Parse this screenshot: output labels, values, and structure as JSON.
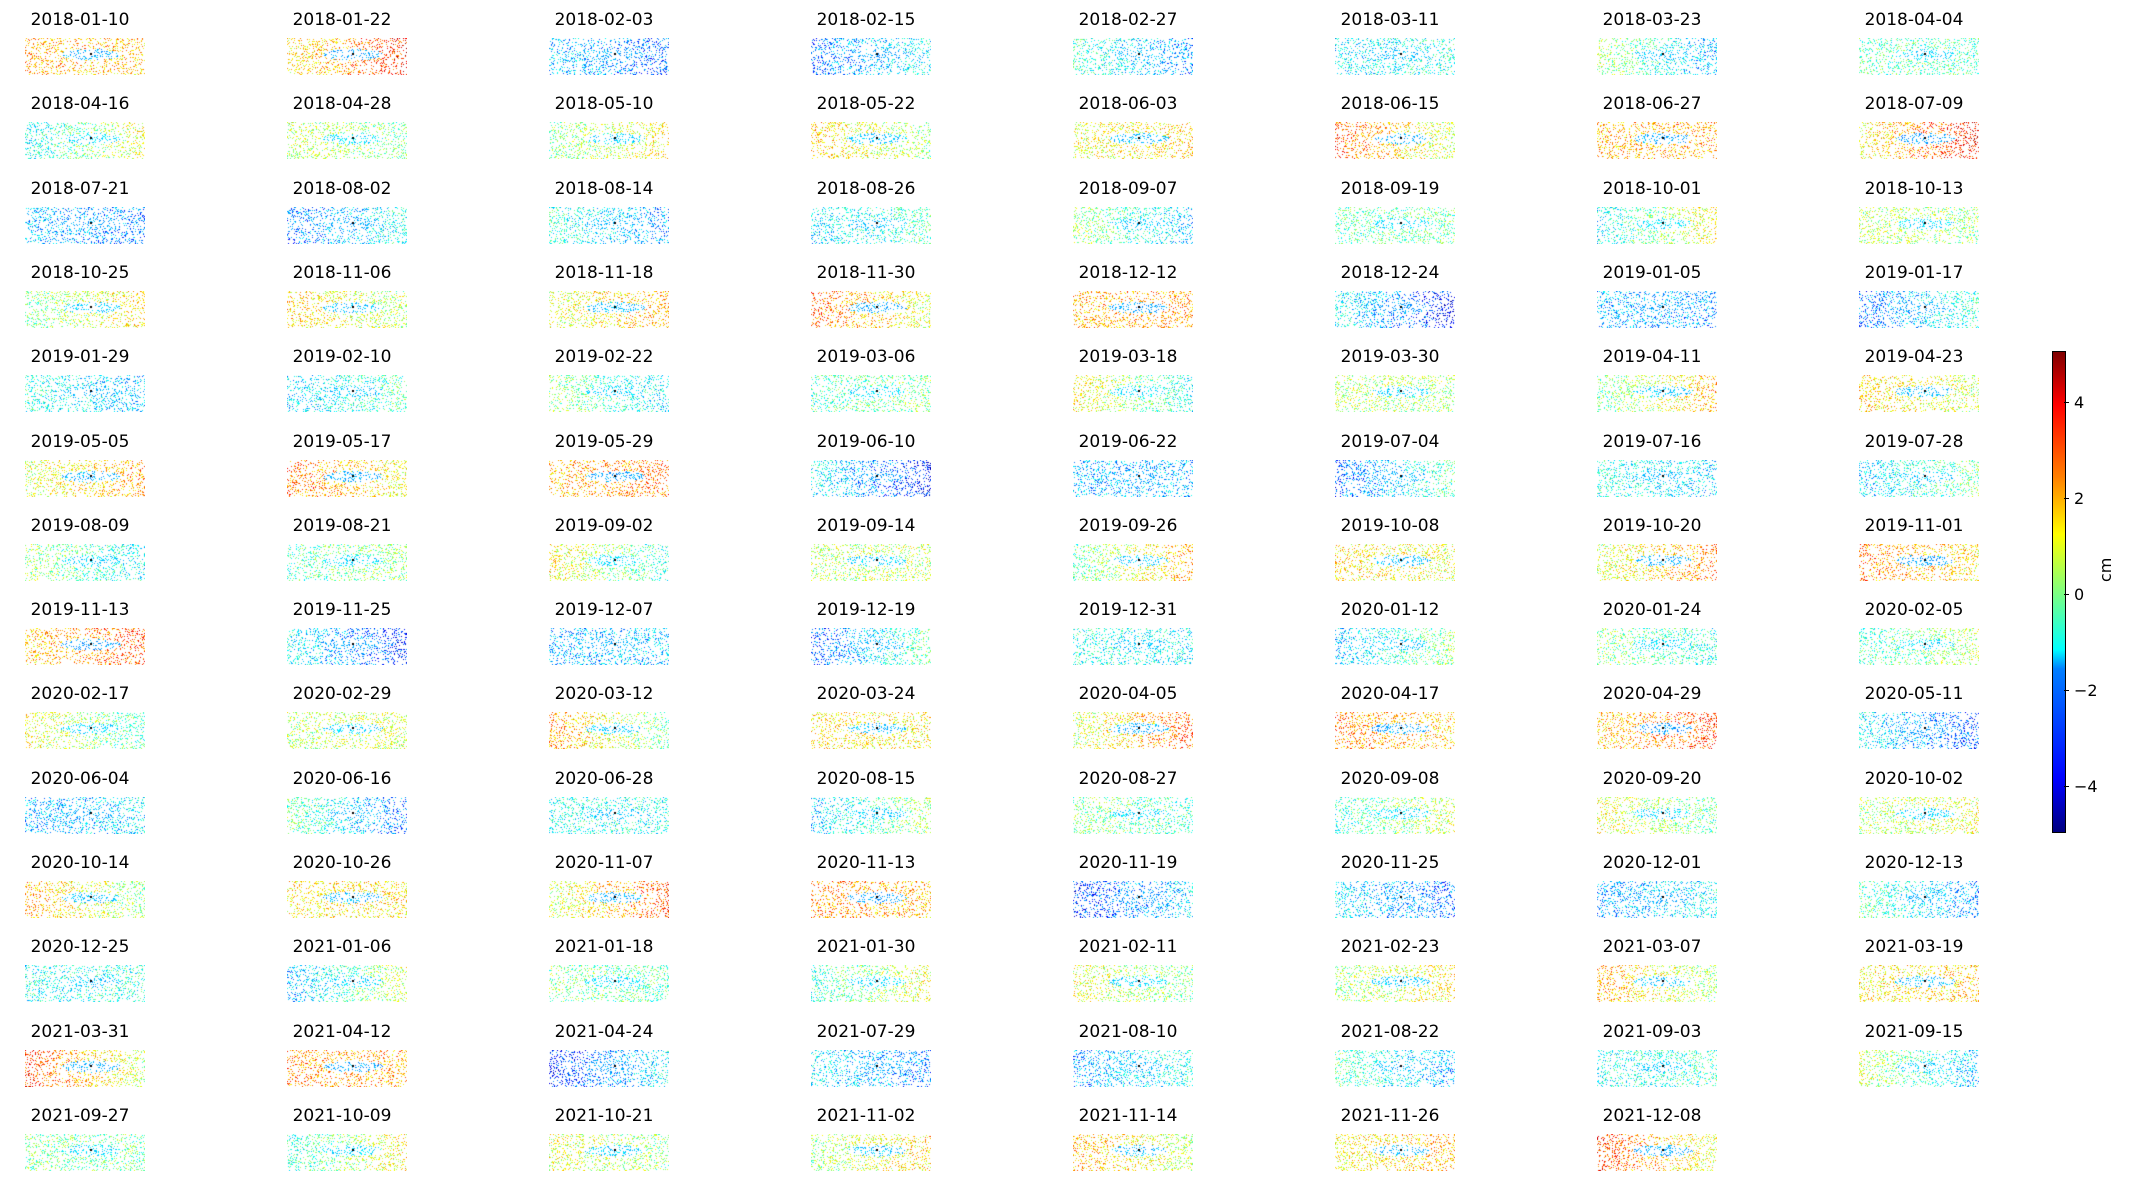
{
  "chart_data": {
    "type": "heatmap",
    "title": "",
    "panel_titles": [
      "2018-01-10",
      "2018-01-22",
      "2018-02-03",
      "2018-02-15",
      "2018-02-27",
      "2018-03-11",
      "2018-03-23",
      "2018-04-04",
      "2018-04-16",
      "2018-04-28",
      "2018-05-10",
      "2018-05-22",
      "2018-06-03",
      "2018-06-15",
      "2018-06-27",
      "2018-07-09",
      "2018-07-21",
      "2018-08-02",
      "2018-08-14",
      "2018-08-26",
      "2018-09-07",
      "2018-09-19",
      "2018-10-01",
      "2018-10-13",
      "2018-10-25",
      "2018-11-06",
      "2018-11-18",
      "2018-11-30",
      "2018-12-12",
      "2018-12-24",
      "2019-01-05",
      "2019-01-17",
      "2019-01-29",
      "2019-02-10",
      "2019-02-22",
      "2019-03-06",
      "2019-03-18",
      "2019-03-30",
      "2019-04-11",
      "2019-04-23",
      "2019-05-05",
      "2019-05-17",
      "2019-05-29",
      "2019-06-10",
      "2019-06-22",
      "2019-07-04",
      "2019-07-16",
      "2019-07-28",
      "2019-08-09",
      "2019-08-21",
      "2019-09-02",
      "2019-09-14",
      "2019-09-26",
      "2019-10-08",
      "2019-10-20",
      "2019-11-01",
      "2019-11-13",
      "2019-11-25",
      "2019-12-07",
      "2019-12-19",
      "2019-12-31",
      "2020-01-12",
      "2020-01-24",
      "2020-02-05",
      "2020-02-17",
      "2020-02-29",
      "2020-03-12",
      "2020-03-24",
      "2020-04-05",
      "2020-04-17",
      "2020-04-29",
      "2020-05-11",
      "2020-06-04",
      "2020-06-16",
      "2020-06-28",
      "2020-08-15",
      "2020-08-27",
      "2020-09-08",
      "2020-09-20",
      "2020-10-02",
      "2020-10-14",
      "2020-10-26",
      "2020-11-07",
      "2020-11-13",
      "2020-11-19",
      "2020-11-25",
      "2020-12-01",
      "2020-12-13",
      "2020-12-25",
      "2021-01-06",
      "2021-01-18",
      "2021-01-30",
      "2021-02-11",
      "2021-02-23",
      "2021-03-07",
      "2021-03-19",
      "2021-03-31",
      "2021-04-12",
      "2021-04-24",
      "2021-07-29",
      "2021-08-10",
      "2021-08-22",
      "2021-09-03",
      "2021-09-15",
      "2021-09-27",
      "2021-10-09",
      "2021-10-21",
      "2021-11-02",
      "2021-11-14",
      "2021-11-26",
      "2021-12-08"
    ],
    "grid_columns": 8,
    "colormap": "jet",
    "colorbar": {
      "label": "cm",
      "range": [
        -5,
        5
      ],
      "ticks": [
        4,
        2,
        0,
        -2,
        -4
      ],
      "tick_labels": [
        "4",
        "2",
        "0",
        "−2",
        "−4"
      ]
    }
  }
}
